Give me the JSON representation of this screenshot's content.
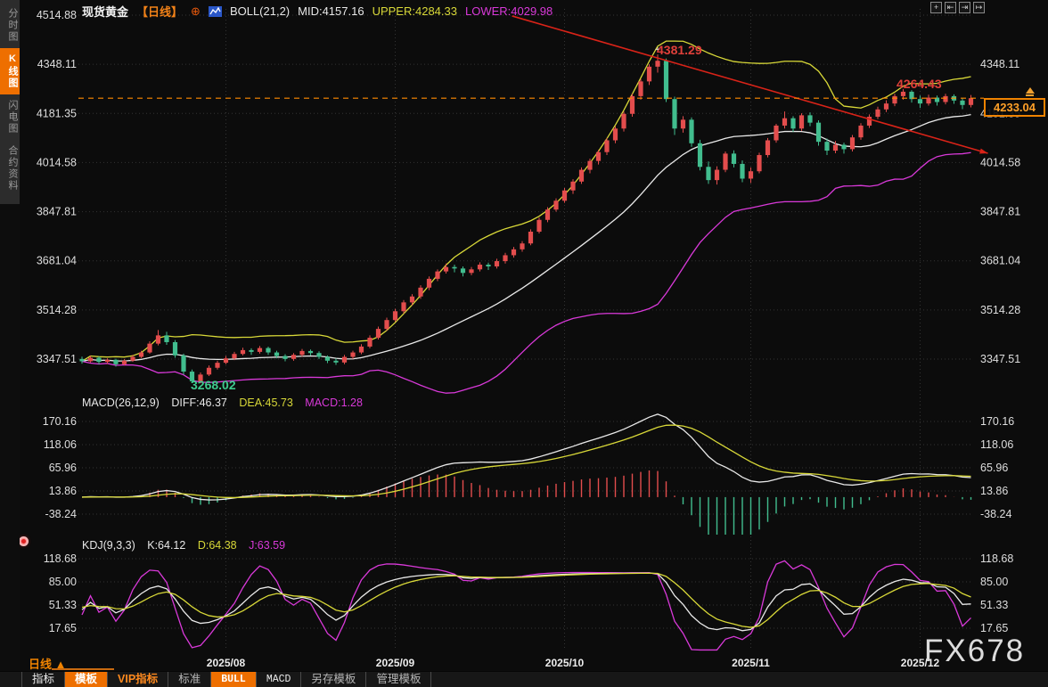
{
  "header": {
    "symbol": "现货黄金",
    "period_tag": "【日线】",
    "boll_label": "BOLL(21,2)",
    "mid_label": "MID:4157.16",
    "upper_label": "UPPER:4284.33",
    "lower_label": "LOWER:4029.98"
  },
  "sidebar": {
    "items": [
      {
        "label": "分时图",
        "active": false
      },
      {
        "label": "K线图",
        "active": true
      },
      {
        "label": "闪电图",
        "active": false
      },
      {
        "label": "合约资料",
        "active": false
      }
    ]
  },
  "top_icons": [
    {
      "name": "crosshair-icon",
      "glyph": "+"
    },
    {
      "name": "pan-left-icon",
      "glyph": "⇤"
    },
    {
      "name": "pan-right-icon",
      "glyph": "⇥"
    },
    {
      "name": "jump-latest-icon",
      "glyph": "↦"
    }
  ],
  "macd_header": {
    "label": "MACD(26,12,9)",
    "diff": "DIFF:46.37",
    "dea": "DEA:45.73",
    "macd": "MACD:1.28"
  },
  "kdj_header": {
    "label": "KDJ(9,3,3)",
    "k": "K:64.12",
    "d": "D:64.38",
    "j": "J:63.59"
  },
  "annotations": {
    "peak": "4381.29",
    "swing_high": "4264.43",
    "swing_low": "3268.02",
    "last_price": "4233.04"
  },
  "period_selector": "日线 ▲",
  "watermark": "FX678",
  "bottom_toolbar": {
    "items": [
      {
        "label": "指标",
        "style": "plain"
      },
      {
        "label": "模板",
        "style": "active"
      },
      {
        "label": "VIP指标",
        "style": "vip"
      },
      {
        "label": "标准",
        "style": "dim"
      },
      {
        "label": "BULL",
        "style": "active mono"
      },
      {
        "label": "MACD",
        "style": "mono"
      },
      {
        "label": "另存模板",
        "style": "dim"
      },
      {
        "label": "管理模板",
        "style": "dim"
      }
    ]
  },
  "colors": {
    "up": "#e34d4d",
    "down": "#41bd8e",
    "boll_mid": "#e9e9e9",
    "boll_upper": "#d8d838",
    "boll_lower": "#d939d9",
    "diff_line": "#e9e9e9",
    "dea_line": "#d8d838",
    "k_line": "#e9e9e9",
    "d_line": "#d8d838",
    "j_line": "#d939d9",
    "trendline": "#d92318",
    "price_line": "#ff8a00",
    "accent": "#ee6f00"
  },
  "chart_data": {
    "type": "candlestick",
    "title": "现货黄金 日线",
    "x_axis": {
      "labels": [
        "2025/08",
        "2025/09",
        "2025/10",
        "2025/11",
        "2025/12"
      ],
      "day_index": [
        17,
        37,
        57,
        79,
        99
      ]
    },
    "y_axis": {
      "main": [
        4514.88,
        4348.11,
        4181.35,
        4014.58,
        3847.81,
        3681.04,
        3514.28,
        3347.51
      ],
      "macd": [
        170.16,
        118.06,
        65.96,
        13.86,
        -38.24
      ],
      "kdj": [
        118.68,
        85.0,
        51.33,
        17.65
      ]
    },
    "overlays": {
      "boll": {
        "period": 21,
        "mult": 2,
        "mid": 4157.16,
        "upper": 4284.33,
        "lower": 4029.98
      }
    },
    "indicators": {
      "macd": {
        "params": [
          26,
          12,
          9
        ],
        "diff": 46.37,
        "dea": 45.73,
        "macd": 1.28
      },
      "kdj": {
        "params": [
          9,
          3,
          3
        ],
        "k": 64.12,
        "d": 64.38,
        "j": 63.59
      }
    },
    "last_price": 4233.04,
    "key_points": {
      "peak_high": 4381.29,
      "swing_high": 4264.43,
      "swing_low": 3268.02
    },
    "trendline": {
      "from_day": 50.8,
      "from_price": 4512,
      "to_day": 107,
      "to_price": 4046
    },
    "candles": [
      [
        3348,
        3356,
        3332,
        3340
      ],
      [
        3340,
        3358,
        3336,
        3352
      ],
      [
        3352,
        3357,
        3330,
        3338
      ],
      [
        3338,
        3350,
        3331,
        3345
      ],
      [
        3345,
        3349,
        3322,
        3330
      ],
      [
        3330,
        3348,
        3326,
        3342
      ],
      [
        3342,
        3362,
        3338,
        3355
      ],
      [
        3355,
        3376,
        3351,
        3370
      ],
      [
        3370,
        3408,
        3366,
        3400
      ],
      [
        3400,
        3446,
        3394,
        3428
      ],
      [
        3428,
        3440,
        3396,
        3405
      ],
      [
        3405,
        3412,
        3352,
        3360
      ],
      [
        3360,
        3366,
        3295,
        3305
      ],
      [
        3305,
        3312,
        3268.02,
        3272
      ],
      [
        3272,
        3302,
        3266,
        3295
      ],
      [
        3295,
        3326,
        3290,
        3318
      ],
      [
        3318,
        3342,
        3312,
        3335
      ],
      [
        3335,
        3358,
        3330,
        3350
      ],
      [
        3350,
        3372,
        3344,
        3365
      ],
      [
        3365,
        3386,
        3360,
        3378
      ],
      [
        3378,
        3384,
        3362,
        3372
      ],
      [
        3372,
        3392,
        3366,
        3385
      ],
      [
        3385,
        3390,
        3362,
        3370
      ],
      [
        3370,
        3376,
        3350,
        3358
      ],
      [
        3358,
        3364,
        3340,
        3348
      ],
      [
        3348,
        3368,
        3342,
        3362
      ],
      [
        3362,
        3382,
        3356,
        3375
      ],
      [
        3375,
        3380,
        3360,
        3368
      ],
      [
        3368,
        3374,
        3348,
        3355
      ],
      [
        3355,
        3360,
        3334,
        3342
      ],
      [
        3342,
        3350,
        3328,
        3336
      ],
      [
        3336,
        3362,
        3330,
        3355
      ],
      [
        3355,
        3376,
        3348,
        3370
      ],
      [
        3370,
        3398,
        3364,
        3390
      ],
      [
        3390,
        3428,
        3384,
        3420
      ],
      [
        3420,
        3458,
        3414,
        3450
      ],
      [
        3450,
        3488,
        3444,
        3480
      ],
      [
        3480,
        3518,
        3474,
        3510
      ],
      [
        3510,
        3548,
        3502,
        3540
      ],
      [
        3540,
        3568,
        3530,
        3560
      ],
      [
        3560,
        3598,
        3552,
        3590
      ],
      [
        3590,
        3628,
        3582,
        3620
      ],
      [
        3620,
        3652,
        3612,
        3645
      ],
      [
        3645,
        3672,
        3638,
        3660
      ],
      [
        3660,
        3668,
        3642,
        3655
      ],
      [
        3655,
        3662,
        3628,
        3640
      ],
      [
        3640,
        3660,
        3632,
        3652
      ],
      [
        3652,
        3676,
        3645,
        3668
      ],
      [
        3668,
        3675,
        3650,
        3662
      ],
      [
        3662,
        3688,
        3655,
        3680
      ],
      [
        3680,
        3708,
        3672,
        3700
      ],
      [
        3700,
        3728,
        3692,
        3720
      ],
      [
        3720,
        3748,
        3712,
        3740
      ],
      [
        3740,
        3788,
        3734,
        3780
      ],
      [
        3780,
        3828,
        3774,
        3820
      ],
      [
        3820,
        3863,
        3812,
        3855
      ],
      [
        3855,
        3893,
        3848,
        3885
      ],
      [
        3885,
        3928,
        3878,
        3920
      ],
      [
        3920,
        3958,
        3908,
        3950
      ],
      [
        3950,
        3998,
        3942,
        3990
      ],
      [
        3990,
        4028,
        3978,
        4020
      ],
      [
        4020,
        4058,
        4008,
        4050
      ],
      [
        4050,
        4098,
        4040,
        4090
      ],
      [
        4090,
        4138,
        4080,
        4130
      ],
      [
        4130,
        4188,
        4120,
        4180
      ],
      [
        4180,
        4248,
        4170,
        4240
      ],
      [
        4240,
        4298,
        4228,
        4290
      ],
      [
        4290,
        4348,
        4278,
        4340
      ],
      [
        4340,
        4381.29,
        4320,
        4360
      ],
      [
        4360,
        4368,
        4220,
        4230
      ],
      [
        4230,
        4238,
        4108,
        4130
      ],
      [
        4130,
        4172,
        4116,
        4160
      ],
      [
        4160,
        4168,
        4068,
        4080
      ],
      [
        4080,
        4092,
        3988,
        4000
      ],
      [
        4000,
        4018,
        3942,
        3955
      ],
      [
        3955,
        4002,
        3940,
        3990
      ],
      [
        3990,
        4052,
        3982,
        4045
      ],
      [
        4045,
        4056,
        3998,
        4010
      ],
      [
        4010,
        4022,
        3948,
        3960
      ],
      [
        3960,
        3998,
        3945,
        3985
      ],
      [
        3985,
        4048,
        3978,
        4040
      ],
      [
        4040,
        4098,
        4032,
        4090
      ],
      [
        4090,
        4146,
        4082,
        4140
      ],
      [
        4140,
        4188,
        4130,
        4165
      ],
      [
        4165,
        4172,
        4118,
        4130
      ],
      [
        4130,
        4182,
        4122,
        4175
      ],
      [
        4175,
        4185,
        4138,
        4150
      ],
      [
        4150,
        4158,
        4072,
        4085
      ],
      [
        4085,
        4096,
        4040,
        4055
      ],
      [
        4055,
        4088,
        4046,
        4075
      ],
      [
        4075,
        4082,
        4045,
        4060
      ],
      [
        4060,
        4108,
        4052,
        4100
      ],
      [
        4100,
        4148,
        4092,
        4140
      ],
      [
        4140,
        4178,
        4132,
        4170
      ],
      [
        4170,
        4204,
        4162,
        4195
      ],
      [
        4195,
        4226,
        4186,
        4215
      ],
      [
        4215,
        4248,
        4206,
        4240
      ],
      [
        4240,
        4264.43,
        4228,
        4255
      ],
      [
        4255,
        4260,
        4218,
        4230
      ],
      [
        4230,
        4242,
        4200,
        4215
      ],
      [
        4215,
        4245,
        4208,
        4235
      ],
      [
        4235,
        4242,
        4208,
        4220
      ],
      [
        4220,
        4248,
        4212,
        4240
      ],
      [
        4240,
        4246,
        4214,
        4225
      ],
      [
        4225,
        4234,
        4196,
        4210
      ],
      [
        4210,
        4244,
        4202,
        4233.04
      ]
    ]
  }
}
